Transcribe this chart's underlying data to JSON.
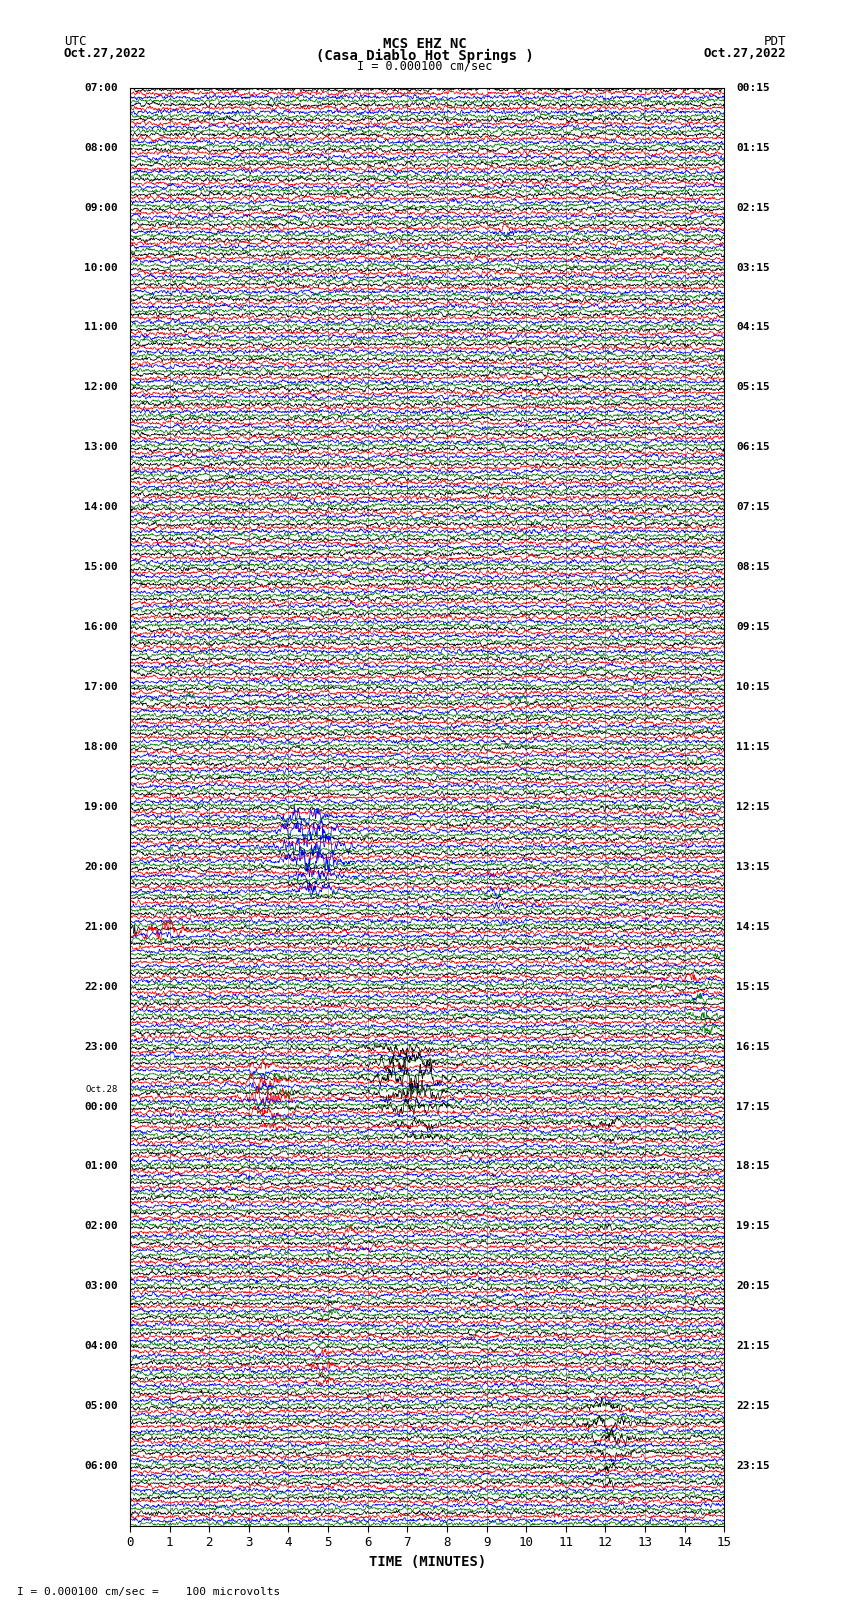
{
  "title_line1": "MCS EHZ NC",
  "title_line2": "(Casa Diablo Hot Springs )",
  "title_line3": "I = 0.000100 cm/sec",
  "left_label_top": "UTC",
  "left_label_date": "Oct.27,2022",
  "right_label_top": "PDT",
  "right_label_date": "Oct.27,2022",
  "xlabel": "TIME (MINUTES)",
  "bottom_note": "I = 0.000100 cm/sec =    100 microvolts",
  "utc_labels": [
    [
      "07:00",
      0
    ],
    [
      "08:00",
      4
    ],
    [
      "09:00",
      8
    ],
    [
      "10:00",
      12
    ],
    [
      "11:00",
      16
    ],
    [
      "12:00",
      20
    ],
    [
      "13:00",
      24
    ],
    [
      "14:00",
      28
    ],
    [
      "15:00",
      32
    ],
    [
      "16:00",
      36
    ],
    [
      "17:00",
      40
    ],
    [
      "18:00",
      44
    ],
    [
      "19:00",
      48
    ],
    [
      "20:00",
      52
    ],
    [
      "21:00",
      56
    ],
    [
      "22:00",
      60
    ],
    [
      "23:00",
      64
    ],
    [
      "Oct.28",
      67
    ],
    [
      "00:00",
      68
    ],
    [
      "01:00",
      72
    ],
    [
      "02:00",
      76
    ],
    [
      "03:00",
      80
    ],
    [
      "04:00",
      84
    ],
    [
      "05:00",
      88
    ],
    [
      "06:00",
      92
    ]
  ],
  "pdt_labels": [
    [
      "00:15",
      0
    ],
    [
      "01:15",
      4
    ],
    [
      "02:15",
      8
    ],
    [
      "03:15",
      12
    ],
    [
      "04:15",
      16
    ],
    [
      "05:15",
      20
    ],
    [
      "06:15",
      24
    ],
    [
      "07:15",
      28
    ],
    [
      "08:15",
      32
    ],
    [
      "09:15",
      36
    ],
    [
      "10:15",
      40
    ],
    [
      "11:15",
      44
    ],
    [
      "12:15",
      48
    ],
    [
      "13:15",
      52
    ],
    [
      "14:15",
      56
    ],
    [
      "15:15",
      60
    ],
    [
      "16:15",
      64
    ],
    [
      "17:15",
      68
    ],
    [
      "18:15",
      72
    ],
    [
      "19:15",
      76
    ],
    [
      "20:15",
      80
    ],
    [
      "21:15",
      84
    ],
    [
      "22:15",
      88
    ],
    [
      "23:15",
      92
    ]
  ],
  "num_rows": 96,
  "colors": [
    "black",
    "red",
    "blue",
    "green"
  ],
  "x_ticks": [
    0,
    1,
    2,
    3,
    4,
    5,
    6,
    7,
    8,
    9,
    10,
    11,
    12,
    13,
    14,
    15
  ],
  "xlim": [
    0,
    15
  ],
  "background_color": "#ffffff",
  "grid_color": "#999999",
  "base_amp": 0.28,
  "seed": 42,
  "events": [
    [
      9,
      1,
      9.5,
      2.5,
      0.15
    ],
    [
      9,
      2,
      9.6,
      3.0,
      0.15
    ],
    [
      12,
      0,
      3.9,
      2.0,
      0.15
    ],
    [
      13,
      0,
      4.0,
      1.8,
      0.12
    ],
    [
      28,
      3,
      5.3,
      1.5,
      0.15
    ],
    [
      36,
      3,
      4.5,
      1.2,
      0.15
    ],
    [
      40,
      3,
      1.5,
      2.0,
      0.2
    ],
    [
      40,
      3,
      9.8,
      3.0,
      0.25
    ],
    [
      41,
      3,
      9.9,
      2.5,
      0.2
    ],
    [
      42,
      3,
      10.0,
      2.0,
      0.2
    ],
    [
      43,
      3,
      10.1,
      1.5,
      0.18
    ],
    [
      44,
      3,
      14.3,
      2.5,
      0.15
    ],
    [
      48,
      0,
      12.0,
      2.5,
      0.08
    ],
    [
      48,
      2,
      4.4,
      5.0,
      0.4
    ],
    [
      49,
      2,
      4.5,
      7.0,
      0.5
    ],
    [
      50,
      2,
      4.6,
      8.0,
      0.55
    ],
    [
      51,
      2,
      4.65,
      7.0,
      0.5
    ],
    [
      52,
      2,
      4.7,
      5.0,
      0.4
    ],
    [
      53,
      2,
      4.75,
      4.0,
      0.35
    ],
    [
      49,
      3,
      14.4,
      2.5,
      0.15
    ],
    [
      52,
      1,
      9.2,
      2.0,
      0.12
    ],
    [
      53,
      2,
      9.3,
      2.5,
      0.18
    ],
    [
      54,
      2,
      9.35,
      2.0,
      0.15
    ],
    [
      55,
      2,
      9.4,
      1.5,
      0.12
    ],
    [
      56,
      0,
      0.1,
      8.0,
      0.05
    ],
    [
      56,
      1,
      0.8,
      6.0,
      0.4
    ],
    [
      56,
      2,
      0.9,
      2.5,
      0.2
    ],
    [
      56,
      3,
      1.0,
      2.0,
      0.2
    ],
    [
      57,
      3,
      14.8,
      3.0,
      0.1
    ],
    [
      57,
      1,
      11.5,
      2.5,
      0.15
    ],
    [
      58,
      1,
      11.6,
      3.0,
      0.2
    ],
    [
      59,
      1,
      14.2,
      3.5,
      0.2
    ],
    [
      60,
      2,
      14.3,
      3.0,
      0.15
    ],
    [
      60,
      3,
      14.4,
      4.0,
      0.15
    ],
    [
      61,
      3,
      14.5,
      5.0,
      0.2
    ],
    [
      62,
      3,
      14.6,
      4.0,
      0.15
    ],
    [
      64,
      0,
      6.8,
      4.0,
      0.5
    ],
    [
      65,
      0,
      6.9,
      6.0,
      0.55
    ],
    [
      66,
      0,
      7.0,
      8.0,
      0.6
    ],
    [
      67,
      0,
      7.1,
      7.0,
      0.55
    ],
    [
      68,
      0,
      7.2,
      5.0,
      0.5
    ],
    [
      69,
      0,
      7.3,
      3.5,
      0.45
    ],
    [
      70,
      0,
      7.4,
      2.5,
      0.4
    ],
    [
      65,
      1,
      3.3,
      3.0,
      0.25
    ],
    [
      66,
      1,
      3.4,
      5.0,
      0.35
    ],
    [
      67,
      1,
      3.5,
      6.0,
      0.4
    ],
    [
      68,
      1,
      3.55,
      4.0,
      0.35
    ],
    [
      69,
      1,
      3.6,
      2.5,
      0.25
    ],
    [
      65,
      2,
      3.2,
      2.5,
      0.2
    ],
    [
      66,
      2,
      3.3,
      3.0,
      0.25
    ],
    [
      67,
      2,
      3.35,
      2.5,
      0.2
    ],
    [
      65,
      3,
      3.9,
      2.5,
      0.2
    ],
    [
      66,
      3,
      4.0,
      3.0,
      0.25
    ],
    [
      67,
      3,
      4.1,
      2.5,
      0.2
    ],
    [
      69,
      0,
      12.0,
      3.0,
      0.3
    ],
    [
      70,
      0,
      12.1,
      2.5,
      0.25
    ],
    [
      76,
      1,
      5.5,
      2.5,
      0.2
    ],
    [
      77,
      1,
      5.6,
      3.0,
      0.25
    ],
    [
      78,
      1,
      4.6,
      2.0,
      0.2
    ],
    [
      72,
      2,
      3.0,
      2.5,
      0.18
    ],
    [
      76,
      0,
      12.0,
      2.0,
      0.2
    ],
    [
      80,
      3,
      5.0,
      2.0,
      0.2
    ],
    [
      81,
      3,
      5.1,
      2.5,
      0.2
    ],
    [
      84,
      1,
      4.8,
      3.0,
      0.25
    ],
    [
      85,
      1,
      4.9,
      3.5,
      0.3
    ],
    [
      86,
      1,
      5.0,
      2.5,
      0.22
    ],
    [
      88,
      0,
      12.0,
      3.5,
      0.4
    ],
    [
      89,
      0,
      12.1,
      4.5,
      0.5
    ],
    [
      90,
      0,
      12.15,
      4.0,
      0.45
    ],
    [
      91,
      0,
      12.2,
      3.0,
      0.4
    ],
    [
      88,
      3,
      12.5,
      2.0,
      0.18
    ],
    [
      92,
      0,
      12.0,
      3.0,
      0.3
    ],
    [
      93,
      0,
      12.05,
      2.5,
      0.25
    ]
  ]
}
